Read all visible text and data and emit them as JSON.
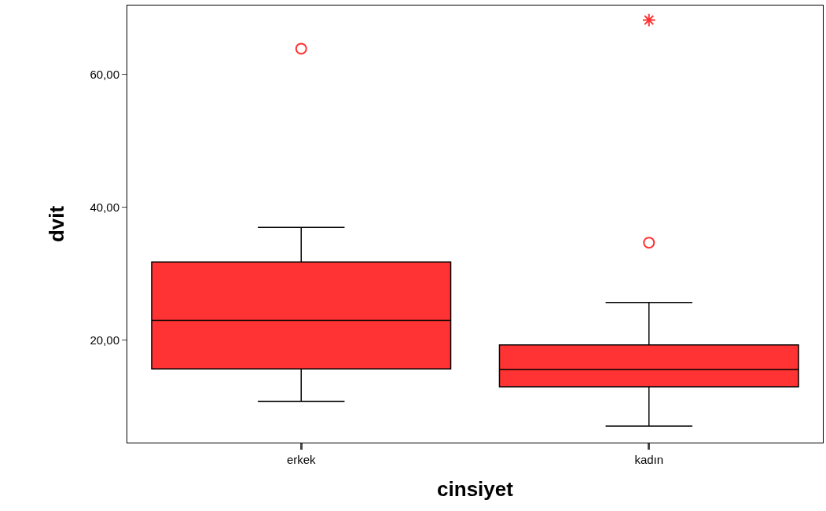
{
  "chart_data": {
    "type": "box",
    "xlabel": "cinsiyet",
    "ylabel": "dvit",
    "categories": [
      "erkek",
      "kadın"
    ],
    "color": "#ff3333",
    "boxes": [
      {
        "low": 10.8,
        "q1": 15.7,
        "median": 23.0,
        "q3": 31.8,
        "high": 37.0,
        "outliers": [
          63.9
        ]
      },
      {
        "low": 7.1,
        "q1": 13.0,
        "median": 15.6,
        "q3": 19.3,
        "high": 25.7,
        "outliers": [
          34.7,
          68.2
        ]
      }
    ],
    "ylim": [
      4.6,
      70.4
    ],
    "yticks": [
      {
        "value": 20,
        "label": "20,00"
      },
      {
        "value": 40,
        "label": "40,00"
      },
      {
        "value": 60,
        "label": "60,00"
      }
    ]
  }
}
